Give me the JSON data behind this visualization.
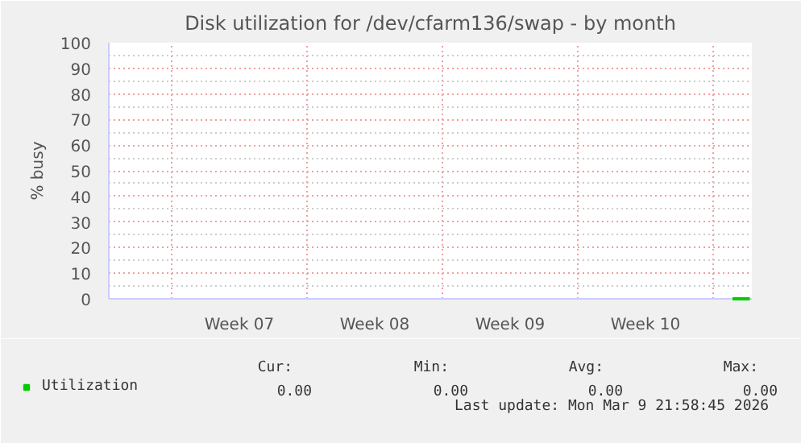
{
  "chart_data": {
    "type": "line",
    "title": "Disk utilization for /dev/cfarm136/swap - by month",
    "ylabel": "% busy",
    "xlim": [
      "2026-02-04T16:00",
      "2026-03-09T22:00"
    ],
    "ylim": [
      0,
      100
    ],
    "xticks": [
      {
        "value": "2026-02-07T22:00",
        "label": null
      },
      {
        "value": "2026-02-11T10:00",
        "label": "Week 07"
      },
      {
        "value": "2026-02-14T22:00",
        "label": null
      },
      {
        "value": "2026-02-18T10:00",
        "label": "Week 08"
      },
      {
        "value": "2026-02-21T22:00",
        "label": null
      },
      {
        "value": "2026-02-25T10:00",
        "label": "Week 09"
      },
      {
        "value": "2026-02-28T22:00",
        "label": null
      },
      {
        "value": "2026-03-04T10:00",
        "label": "Week 10"
      },
      {
        "value": "2026-03-07T22:00",
        "label": null
      }
    ],
    "yticks": [
      0,
      10,
      20,
      30,
      40,
      50,
      60,
      70,
      80,
      90,
      100
    ],
    "series": [
      {
        "name": "Utilization",
        "color": "#00cc00",
        "x": [
          "2026-03-08T22:00",
          "2026-03-09T19:30"
        ],
        "values": [
          0,
          0
        ]
      }
    ],
    "grid": true,
    "legend": "bottom left",
    "marker": "none",
    "line_style": "solid",
    "annotations": [
      "Cur:",
      "Min:",
      "Avg:",
      "Max:",
      "0.00",
      "0.00",
      "0.00",
      "0.00",
      "Last update: Mon Mar  9 21:58:45 2026"
    ]
  }
}
